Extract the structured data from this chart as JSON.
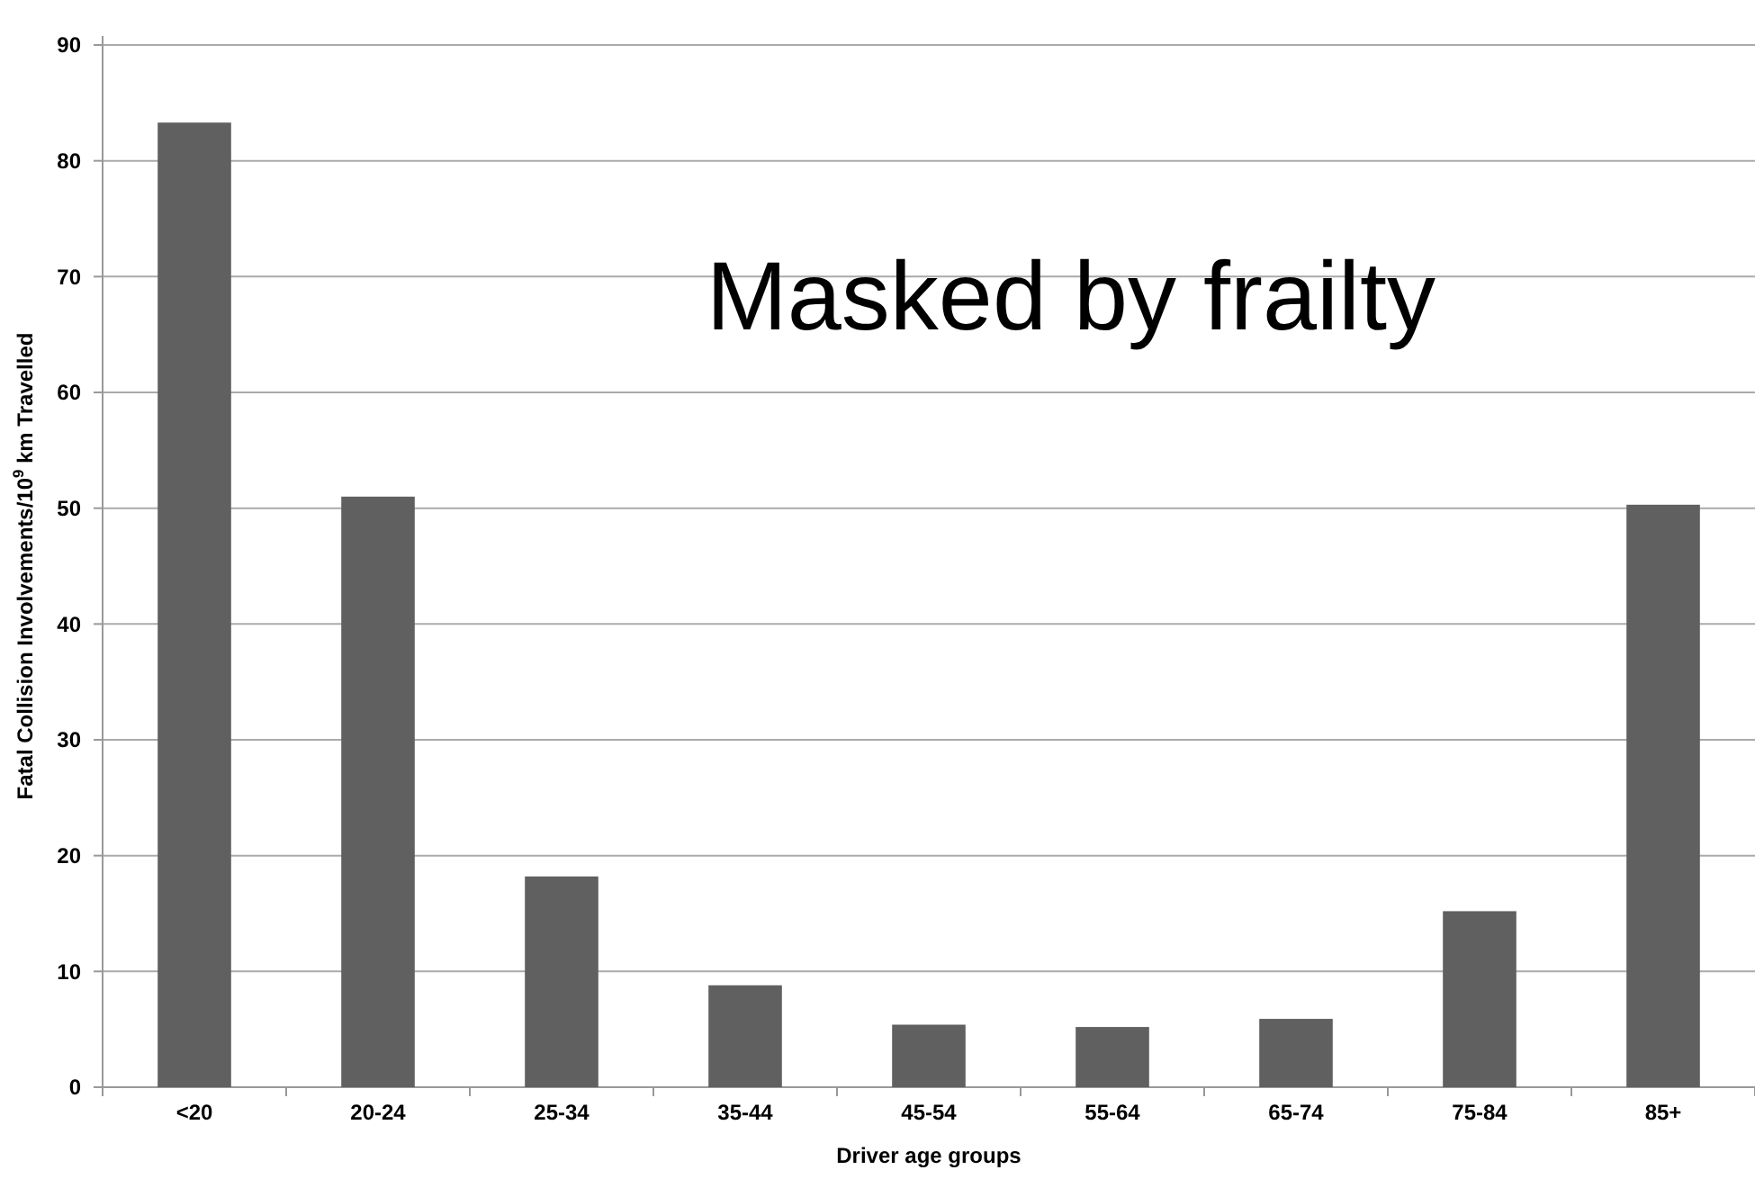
{
  "chart_data": {
    "type": "bar",
    "ylabel": "Fatal Collision Involvements/10$^{9}$ km Travelled",
    "xlabel": "Driver age groups",
    "categories": [
      "<20",
      "20-24",
      "25-34",
      "35-44",
      "45-54",
      "55-64",
      "65-74",
      "75-84",
      "85+"
    ],
    "values": [
      83.3,
      51,
      18.2,
      8.8,
      5.4,
      5.2,
      5.9,
      15.2,
      50.3
    ],
    "color": "#606060",
    "ylim": [
      0,
      90
    ],
    "yticks": [
      0,
      10,
      20,
      30,
      40,
      50,
      60,
      70,
      80,
      90
    ],
    "grid": "y",
    "annotations": [
      "Masked by frailty"
    ]
  }
}
